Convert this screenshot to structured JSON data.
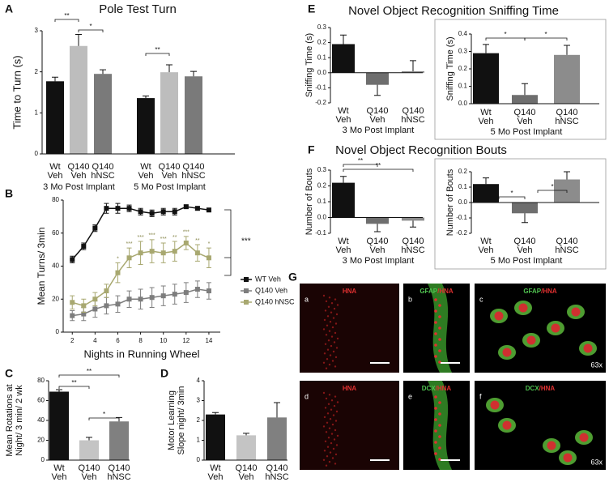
{
  "chart_data": [
    {
      "type": "bar",
      "panel": "A",
      "title": "Pole Test Turn",
      "ylabel": [
        "Time to Turn (s)"
      ],
      "ylim": [
        0,
        3
      ],
      "yticks": [
        0,
        1,
        2,
        3
      ],
      "colors": [
        "#111111",
        "#bdbdbd",
        "#7a7a7a"
      ],
      "groups": [
        {
          "name": "3 Mo Post Implant",
          "categories": [
            [
              "Wt",
              "Veh"
            ],
            [
              "Q140",
              "Veh"
            ],
            [
              "Q140",
              "hNSC"
            ]
          ],
          "values": [
            1.77,
            2.63,
            1.95
          ],
          "errors": [
            0.1,
            0.28,
            0.1
          ]
        },
        {
          "name": "5 Mo Post Implant",
          "categories": [
            [
              "Wt",
              "Veh"
            ],
            [
              "Q140",
              "Veh"
            ],
            [
              "Q140",
              "hNSC"
            ]
          ],
          "values": [
            1.36,
            1.99,
            1.89
          ],
          "errors": [
            0.05,
            0.18,
            0.12
          ]
        }
      ],
      "significance": [
        "**",
        "*",
        "**"
      ]
    },
    {
      "type": "line",
      "panel": "B",
      "ylabel": "Mean Turns/ 3min",
      "xlabel": "Nights in Running Wheel",
      "x": [
        2,
        3,
        4,
        5,
        6,
        7,
        8,
        9,
        10,
        11,
        12,
        13,
        14
      ],
      "xlim": [
        1.2,
        15
      ],
      "xticks": [
        2,
        4,
        6,
        8,
        10,
        12,
        14
      ],
      "ylim": [
        0,
        80
      ],
      "yticks": [
        0,
        20,
        40,
        60,
        80
      ],
      "legend": "right",
      "series": [
        {
          "name": "WT Veh",
          "color": "#111111",
          "values": [
            44,
            52,
            63,
            75,
            75,
            75,
            73,
            72,
            73,
            73,
            76,
            75,
            74
          ],
          "errors": [
            2,
            2,
            2,
            3,
            3,
            2,
            2,
            2,
            2,
            2,
            1,
            1,
            1
          ]
        },
        {
          "name": "Q140 Veh",
          "color": "#7d7d7d",
          "values": [
            10,
            11,
            14,
            16,
            17,
            20,
            20,
            21,
            22,
            23,
            24,
            26,
            25
          ],
          "errors": [
            3,
            4,
            5,
            5,
            5,
            5,
            6,
            6,
            6,
            6,
            6,
            5,
            5
          ]
        },
        {
          "name": "Q140 hNSC",
          "color": "#a8a870",
          "values": [
            18,
            16,
            20,
            25,
            36,
            45,
            48,
            49,
            48,
            49,
            54,
            48,
            45
          ],
          "errors": [
            4,
            4,
            4,
            4,
            6,
            6,
            7,
            7,
            6,
            6,
            4,
            5,
            6
          ]
        }
      ],
      "annotations": [
        {
          "x": 6,
          "label": "*"
        },
        {
          "x": 7,
          "label": "***"
        },
        {
          "x": 8,
          "label": "***"
        },
        {
          "x": 9,
          "label": "***"
        },
        {
          "x": 10,
          "label": "***"
        },
        {
          "x": 11,
          "label": "**"
        },
        {
          "x": 12,
          "label": "***"
        },
        {
          "x": 13,
          "label": "**"
        },
        {
          "x": 14,
          "label": "*"
        }
      ],
      "significance": [
        "***"
      ]
    },
    {
      "type": "bar",
      "panel": "C",
      "ylabel": [
        "Mean Rotations at",
        "Night/ 3 min/ 2 wk"
      ],
      "ylim": [
        0,
        80
      ],
      "yticks": [
        0,
        20,
        40,
        60,
        80
      ],
      "colors": [
        "#111111",
        "#c4c4c4",
        "#808080"
      ],
      "groups": [
        {
          "categories": [
            [
              "Wt",
              "Veh"
            ],
            [
              "Q140",
              "Veh"
            ],
            [
              "Q140",
              "hNSC"
            ]
          ],
          "values": [
            69,
            20,
            39
          ],
          "errors": [
            2,
            3,
            4
          ]
        }
      ],
      "significance": [
        "**",
        "**",
        "*"
      ]
    },
    {
      "type": "bar",
      "panel": "D",
      "ylabel": [
        "Motor Learning",
        "Slope night/ 3min"
      ],
      "ylim": [
        0,
        4
      ],
      "yticks": [
        0,
        1,
        2,
        3,
        4
      ],
      "colors": [
        "#111111",
        "#c4c4c4",
        "#808080"
      ],
      "groups": [
        {
          "categories": [
            [
              "Wt",
              "Veh"
            ],
            [
              "Q140",
              "Veh"
            ],
            [
              "Q140",
              "hNSC"
            ]
          ],
          "values": [
            2.3,
            1.25,
            2.15
          ],
          "errors": [
            0.1,
            0.1,
            0.75
          ]
        }
      ]
    },
    {
      "type": "bar",
      "panel": "E",
      "title": "Novel Object Recognition Sniffing Time",
      "ylabel": [
        "Sniffing Time (s)"
      ],
      "ylim": [
        -0.2,
        0.3
      ],
      "yticks": [
        -0.2,
        -0.1,
        {
          "value": 0,
          "label": "0.0"
        },
        0.1,
        0.2,
        0.3
      ],
      "colors": [
        "#111111",
        "#6e6e6e",
        "#8c8c8c"
      ],
      "groups": [
        {
          "name": "3 Mo Post Implant",
          "categories": [
            [
              "Wt",
              "Veh"
            ],
            [
              "Q140",
              "Veh"
            ],
            [
              "Q140",
              "hNSC"
            ]
          ],
          "values": [
            0.19,
            -0.08,
            0.01
          ],
          "errors": [
            0.06,
            0.07,
            0.07
          ]
        }
      ]
    },
    {
      "type": "bar",
      "ylabel": [
        "Sniffing Time (s)"
      ],
      "ylim": [
        0,
        0.4
      ],
      "yticks": [
        {
          "value": 0,
          "label": "0.0"
        },
        0.1,
        0.2,
        0.3,
        0.4
      ],
      "colors": [
        "#111111",
        "#6e6e6e",
        "#8c8c8c"
      ],
      "groups": [
        {
          "name": "5 Mo Post Implant",
          "categories": [
            [
              "Wt",
              "Veh"
            ],
            [
              "Q140",
              "Veh"
            ],
            [
              "Q140",
              "hNSC"
            ]
          ],
          "values": [
            0.29,
            0.05,
            0.28
          ],
          "errors": [
            0.05,
            0.065,
            0.055
          ]
        }
      ],
      "significance": [
        "*",
        "*"
      ]
    },
    {
      "type": "bar",
      "panel": "F",
      "title": "Novel Object Recognition Bouts",
      "ylabel": [
        "Number of Bouts"
      ],
      "ylim": [
        -0.1,
        0.3
      ],
      "yticks": [
        -0.1,
        {
          "value": 0,
          "label": "0.0"
        },
        0.1,
        0.2,
        0.3
      ],
      "colors": [
        "#111111",
        "#6e6e6e",
        "#8c8c8c"
      ],
      "groups": [
        {
          "name": "3 Mo Post Implant",
          "categories": [
            [
              "Wt",
              "Veh"
            ],
            [
              "Q140",
              "Veh"
            ],
            [
              "Q140",
              "hNSC"
            ]
          ],
          "values": [
            0.22,
            -0.04,
            -0.02
          ],
          "errors": [
            0.04,
            0.05,
            0.04
          ]
        }
      ],
      "significance": [
        "**",
        "**"
      ]
    },
    {
      "type": "bar",
      "ylabel": [
        "Number of Bouts"
      ],
      "ylim": [
        -0.2,
        0.2
      ],
      "yticks": [
        -0.2,
        -0.1,
        {
          "value": 0,
          "label": "0.0"
        },
        0.1,
        0.2
      ],
      "colors": [
        "#111111",
        "#6e6e6e",
        "#8c8c8c"
      ],
      "groups": [
        {
          "name": "5 Mo Post Implant",
          "categories": [
            [
              "Wt",
              "Veh"
            ],
            [
              "Q140",
              "Veh"
            ],
            [
              "Q140",
              "hNSC"
            ]
          ],
          "values": [
            0.12,
            -0.07,
            0.15
          ],
          "errors": [
            0.04,
            0.06,
            0.05
          ]
        }
      ],
      "significance": [
        "*",
        "*"
      ]
    }
  ],
  "panel_g": {
    "panel": "G",
    "images": [
      {
        "letter": "a",
        "stain": [
          {
            "text": "HNA",
            "color": "#e03030"
          }
        ]
      },
      {
        "letter": "b",
        "stain": [
          {
            "text": "GFAP",
            "color": "#4fc14f"
          },
          {
            "text": "/HNA",
            "color": "#e03030"
          }
        ]
      },
      {
        "letter": "c",
        "stain": [
          {
            "text": "GFAP",
            "color": "#4fc14f"
          },
          {
            "text": "/HNA",
            "color": "#e03030"
          }
        ],
        "magnification": "63x"
      },
      {
        "letter": "d",
        "stain": [
          {
            "text": "HNA",
            "color": "#e03030"
          }
        ]
      },
      {
        "letter": "e",
        "stain": [
          {
            "text": "DCX",
            "color": "#4fc14f"
          },
          {
            "text": "/HNA",
            "color": "#e03030"
          }
        ]
      },
      {
        "letter": "f",
        "stain": [
          {
            "text": "DCX",
            "color": "#4fc14f"
          },
          {
            "text": "/HNA",
            "color": "#e03030"
          }
        ],
        "magnification": "63x"
      }
    ]
  }
}
